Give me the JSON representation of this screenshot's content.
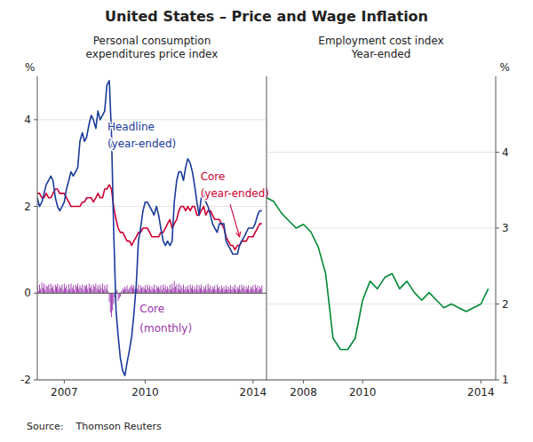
{
  "title": "United States – Price and Wage Inflation",
  "source": "Source:    Thomson Reuters",
  "chart_data": [
    {
      "type": "combo",
      "title": "Personal consumption\nexpenditures price index",
      "ylabel": "%",
      "xlim": [
        2006.0,
        2014.5
      ],
      "ylim": [
        -2.0,
        5.0
      ],
      "xticks": [
        2007,
        2010,
        2014
      ],
      "yticks": [
        -2,
        0,
        2,
        4
      ],
      "grid": true,
      "series": [
        {
          "type": "bar",
          "color": "#9933AA",
          "x": [
            2006.0,
            2006.04,
            2006.08,
            2006.12,
            2006.17,
            2006.21,
            2006.25,
            2006.29,
            2006.33,
            2006.37,
            2006.42,
            2006.46,
            2006.5,
            2006.54,
            2006.58,
            2006.62,
            2006.67,
            2006.71,
            2006.75,
            2006.79,
            2006.83,
            2006.87,
            2006.92,
            2006.96,
            2007.0,
            2007.04,
            2007.08,
            2007.12,
            2007.17,
            2007.21,
            2007.25,
            2007.29,
            2007.33,
            2007.37,
            2007.42,
            2007.46,
            2007.5,
            2007.54,
            2007.58,
            2007.62,
            2007.67,
            2007.71,
            2007.75,
            2007.79,
            2007.83,
            2007.87,
            2007.92,
            2007.96,
            2008.0,
            2008.04,
            2008.08,
            2008.12,
            2008.17,
            2008.21,
            2008.25,
            2008.29,
            2008.33,
            2008.37,
            2008.42,
            2008.46,
            2008.5,
            2008.54,
            2008.58,
            2008.62,
            2008.67,
            2008.71,
            2008.75,
            2008.79,
            2008.83,
            2008.87,
            2008.92,
            2008.96,
            2009.0,
            2009.04,
            2009.08,
            2009.12,
            2009.17,
            2009.21,
            2009.25,
            2009.29,
            2009.33,
            2009.37,
            2009.42,
            2009.46,
            2009.5,
            2009.54,
            2009.58,
            2009.62,
            2009.67,
            2009.71,
            2009.75,
            2009.79,
            2009.83,
            2009.87,
            2009.92,
            2009.96,
            2010.0,
            2010.04,
            2010.08,
            2010.12,
            2010.17,
            2010.21,
            2010.25,
            2010.29,
            2010.33,
            2010.37,
            2010.42,
            2010.46,
            2010.5,
            2010.54,
            2010.58,
            2010.62,
            2010.67,
            2010.71,
            2010.75,
            2010.79,
            2010.83,
            2010.87,
            2010.92,
            2010.96,
            2011.0,
            2011.04,
            2011.08,
            2011.12,
            2011.17,
            2011.21,
            2011.25,
            2011.29,
            2011.33,
            2011.37,
            2011.42,
            2011.46,
            2011.5,
            2011.54,
            2011.58,
            2011.62,
            2011.67,
            2011.71,
            2011.75,
            2011.79,
            2011.83,
            2011.87,
            2011.92,
            2011.96,
            2012.0,
            2012.04,
            2012.08,
            2012.12,
            2012.17,
            2012.21,
            2012.25,
            2012.29,
            2012.33,
            2012.37,
            2012.42,
            2012.46,
            2012.5,
            2012.54,
            2012.58,
            2012.62,
            2012.67,
            2012.71,
            2012.75,
            2012.79,
            2012.83,
            2012.87,
            2012.92,
            2012.96,
            2013.0,
            2013.04,
            2013.08,
            2013.12,
            2013.17,
            2013.21,
            2013.25,
            2013.29,
            2013.33,
            2013.37,
            2013.42,
            2013.46,
            2013.5,
            2013.54,
            2013.58,
            2013.62,
            2013.67,
            2013.71,
            2013.75,
            2013.79,
            2013.83,
            2013.87,
            2013.92,
            2013.96,
            2014.0,
            2014.04,
            2014.08,
            2014.12,
            2014.17,
            2014.21,
            2014.25,
            2014.29,
            2014.33
          ],
          "values": [
            0.18,
            0.05,
            0.2,
            0.1,
            0.25,
            0.12,
            0.22,
            0.08,
            0.18,
            0.15,
            0.2,
            0.1,
            0.22,
            0.12,
            0.18,
            0.08,
            0.2,
            0.15,
            0.22,
            0.1,
            0.18,
            0.12,
            0.2,
            0.08,
            0.22,
            0.12,
            0.18,
            0.08,
            0.2,
            0.1,
            0.22,
            0.12,
            0.18,
            0.08,
            0.2,
            0.15,
            0.22,
            0.1,
            0.18,
            0.12,
            0.2,
            0.08,
            0.18,
            0.15,
            0.2,
            0.1,
            0.22,
            0.12,
            0.18,
            0.08,
            0.2,
            0.15,
            0.22,
            0.1,
            0.18,
            0.08,
            0.2,
            0.12,
            0.22,
            0.08,
            0.18,
            0.1,
            0.2,
            0.05,
            -0.2,
            -0.45,
            -0.55,
            -0.4,
            -0.25,
            -0.1,
            0.05,
            0.08,
            -0.18,
            -0.12,
            -0.08,
            0.05,
            0.12,
            0.08,
            0.15,
            0.1,
            0.18,
            0.08,
            0.12,
            0.15,
            0.2,
            0.12,
            0.18,
            0.08,
            0.15,
            0.1,
            0.2,
            0.08,
            0.18,
            0.12,
            0.15,
            0.1,
            0.18,
            0.08,
            0.2,
            0.12,
            0.18,
            0.08,
            0.15,
            0.1,
            0.2,
            0.08,
            0.18,
            0.12,
            0.15,
            0.1,
            0.18,
            0.08,
            0.2,
            0.12,
            0.18,
            0.08,
            0.15,
            0.1,
            0.2,
            0.08,
            0.22,
            0.12,
            0.28,
            0.15,
            0.2,
            0.1,
            0.22,
            0.08,
            0.18,
            0.12,
            0.2,
            0.08,
            0.15,
            0.1,
            0.18,
            0.08,
            0.2,
            0.12,
            0.18,
            0.08,
            0.15,
            0.1,
            0.2,
            0.08,
            0.18,
            0.12,
            0.2,
            0.08,
            0.15,
            0.1,
            0.18,
            0.08,
            0.22,
            0.12,
            0.18,
            0.08,
            0.15,
            0.1,
            0.18,
            0.08,
            0.2,
            0.12,
            0.15,
            0.08,
            0.18,
            0.1,
            0.15,
            0.08,
            0.18,
            0.08,
            0.15,
            0.1,
            0.18,
            0.08,
            0.15,
            0.1,
            0.2,
            0.08,
            0.15,
            0.1,
            0.18,
            0.08,
            0.2,
            0.12,
            0.18,
            0.08,
            0.15,
            0.1,
            0.18,
            0.08,
            0.15,
            0.1,
            0.18,
            0.08,
            0.2,
            0.12,
            0.18,
            0.08,
            0.15,
            0.1,
            0.18
          ]
        },
        {
          "type": "line",
          "color": "#1A3A9A",
          "x": [
            2006.0,
            2006.08,
            2006.17,
            2006.25,
            2006.33,
            2006.42,
            2006.5,
            2006.58,
            2006.67,
            2006.75,
            2006.83,
            2006.92,
            2007.0,
            2007.08,
            2007.17,
            2007.25,
            2007.33,
            2007.42,
            2007.5,
            2007.58,
            2007.67,
            2007.75,
            2007.83,
            2007.92,
            2008.0,
            2008.08,
            2008.17,
            2008.25,
            2008.33,
            2008.42,
            2008.5,
            2008.58,
            2008.67,
            2008.75,
            2008.83,
            2008.92,
            2009.0,
            2009.08,
            2009.17,
            2009.25,
            2009.33,
            2009.42,
            2009.5,
            2009.58,
            2009.67,
            2009.75,
            2009.83,
            2009.92,
            2010.0,
            2010.08,
            2010.17,
            2010.25,
            2010.33,
            2010.42,
            2010.5,
            2010.58,
            2010.67,
            2010.75,
            2010.83,
            2010.92,
            2011.0,
            2011.08,
            2011.17,
            2011.25,
            2011.33,
            2011.42,
            2011.5,
            2011.58,
            2011.67,
            2011.75,
            2011.83,
            2011.92,
            2012.0,
            2012.08,
            2012.17,
            2012.25,
            2012.33,
            2012.42,
            2012.5,
            2012.58,
            2012.67,
            2012.75,
            2012.83,
            2012.92,
            2013.0,
            2013.08,
            2013.17,
            2013.25,
            2013.33,
            2013.42,
            2013.5,
            2013.58,
            2013.67,
            2013.75,
            2013.83,
            2013.92,
            2014.0,
            2014.08,
            2014.17,
            2014.25,
            2014.33
          ],
          "values": [
            2.2,
            2.0,
            2.1,
            2.3,
            2.5,
            2.6,
            2.7,
            2.6,
            2.2,
            2.0,
            1.9,
            2.0,
            2.1,
            2.4,
            2.6,
            2.8,
            2.7,
            2.8,
            2.9,
            3.5,
            3.7,
            3.5,
            3.6,
            3.9,
            4.1,
            4.0,
            3.8,
            4.2,
            4.0,
            4.1,
            4.2,
            4.8,
            4.9,
            3.7,
            1.5,
            -0.4,
            -1.0,
            -1.5,
            -1.8,
            -1.9,
            -1.6,
            -1.3,
            -1.0,
            -0.5,
            0.2,
            1.2,
            1.5,
            1.9,
            2.1,
            2.1,
            2.0,
            1.9,
            1.8,
            2.0,
            1.8,
            1.5,
            1.2,
            1.1,
            1.2,
            1.1,
            1.2,
            2.1,
            2.6,
            2.8,
            2.8,
            2.6,
            2.9,
            3.1,
            3.0,
            2.8,
            2.5,
            2.1,
            1.8,
            2.2,
            2.3,
            2.1,
            2.0,
            1.8,
            1.6,
            1.5,
            1.4,
            1.6,
            1.6,
            1.6,
            1.2,
            1.1,
            1.0,
            0.9,
            0.9,
            0.9,
            1.1,
            1.2,
            1.3,
            1.4,
            1.5,
            1.5,
            1.5,
            1.6,
            1.8,
            1.9,
            1.9
          ]
        },
        {
          "type": "line",
          "color": "#CC0033",
          "x": [
            2006.0,
            2006.08,
            2006.17,
            2006.25,
            2006.33,
            2006.42,
            2006.5,
            2006.58,
            2006.67,
            2006.75,
            2006.83,
            2006.92,
            2007.0,
            2007.08,
            2007.17,
            2007.25,
            2007.33,
            2007.42,
            2007.5,
            2007.58,
            2007.67,
            2007.75,
            2007.83,
            2007.92,
            2008.0,
            2008.08,
            2008.17,
            2008.25,
            2008.33,
            2008.42,
            2008.5,
            2008.58,
            2008.67,
            2008.75,
            2008.83,
            2008.92,
            2009.0,
            2009.08,
            2009.17,
            2009.25,
            2009.33,
            2009.42,
            2009.5,
            2009.58,
            2009.67,
            2009.75,
            2009.83,
            2009.92,
            2010.0,
            2010.08,
            2010.17,
            2010.25,
            2010.33,
            2010.42,
            2010.5,
            2010.58,
            2010.67,
            2010.75,
            2010.83,
            2010.92,
            2011.0,
            2011.08,
            2011.17,
            2011.25,
            2011.33,
            2011.42,
            2011.5,
            2011.58,
            2011.67,
            2011.75,
            2011.83,
            2011.92,
            2012.0,
            2012.08,
            2012.17,
            2012.25,
            2012.33,
            2012.42,
            2012.5,
            2012.58,
            2012.67,
            2012.75,
            2012.83,
            2012.92,
            2013.0,
            2013.08,
            2013.17,
            2013.25,
            2013.33,
            2013.42,
            2013.5,
            2013.58,
            2013.67,
            2013.75,
            2013.83,
            2013.92,
            2014.0,
            2014.08,
            2014.17,
            2014.25,
            2014.33
          ],
          "values": [
            2.3,
            2.3,
            2.2,
            2.2,
            2.3,
            2.2,
            2.2,
            2.3,
            2.4,
            2.4,
            2.3,
            2.3,
            2.3,
            2.2,
            2.1,
            2.0,
            2.0,
            2.0,
            2.0,
            2.0,
            2.1,
            2.1,
            2.2,
            2.2,
            2.2,
            2.1,
            2.2,
            2.3,
            2.2,
            2.2,
            2.4,
            2.4,
            2.5,
            2.4,
            2.0,
            1.7,
            1.5,
            1.4,
            1.4,
            1.3,
            1.2,
            1.2,
            1.1,
            1.2,
            1.3,
            1.4,
            1.4,
            1.5,
            1.5,
            1.5,
            1.4,
            1.3,
            1.3,
            1.3,
            1.3,
            1.4,
            1.4,
            1.5,
            1.6,
            1.7,
            1.5,
            1.6,
            1.7,
            1.9,
            2.0,
            2.0,
            1.9,
            2.0,
            1.9,
            2.0,
            2.0,
            1.8,
            1.8,
            1.9,
            2.0,
            1.8,
            1.9,
            1.9,
            1.8,
            1.7,
            1.7,
            1.7,
            1.6,
            1.5,
            1.3,
            1.2,
            1.1,
            1.1,
            1.0,
            1.1,
            1.1,
            1.2,
            1.2,
            1.2,
            1.3,
            1.3,
            1.3,
            1.4,
            1.5,
            1.6,
            1.6
          ]
        }
      ],
      "annotations": [
        {
          "text": "Headline",
          "x": 2008.6,
          "y": 3.7,
          "color": "#1A3A9A"
        },
        {
          "text": "(year-ended)",
          "x": 2008.6,
          "y": 3.3,
          "color": "#1A3A9A"
        },
        {
          "text": "Core",
          "x": 2012.05,
          "y": 2.55,
          "color": "#CC0033"
        },
        {
          "text": "(year-ended)",
          "x": 2012.05,
          "y": 2.15,
          "color": "#CC0033",
          "arrow_from": [
            2013.15,
            2.05
          ],
          "arrow_to": [
            2013.5,
            1.3
          ]
        },
        {
          "text": "Core",
          "x": 2009.8,
          "y": -0.5,
          "color": "#9933AA"
        },
        {
          "text": "(monthly)",
          "x": 2009.8,
          "y": -0.95,
          "color": "#9933AA"
        }
      ]
    },
    {
      "type": "line",
      "title": "Employment cost index\nYear-ended",
      "ylabel": "%",
      "xlim": [
        2006.75,
        2014.5
      ],
      "ylim": [
        1.0,
        5.0
      ],
      "xticks": [
        2008,
        2010,
        2014
      ],
      "yticks": [
        1,
        2,
        3,
        4
      ],
      "grid": true,
      "series": [
        {
          "type": "line",
          "color": "#008833",
          "x": [
            2006.75,
            2007.0,
            2007.25,
            2007.5,
            2007.75,
            2008.0,
            2008.25,
            2008.5,
            2008.75,
            2009.0,
            2009.25,
            2009.5,
            2009.75,
            2010.0,
            2010.25,
            2010.5,
            2010.75,
            2011.0,
            2011.25,
            2011.5,
            2011.75,
            2012.0,
            2012.25,
            2012.5,
            2012.75,
            2013.0,
            2013.25,
            2013.5,
            2013.75,
            2014.0,
            2014.25
          ],
          "values": [
            3.4,
            3.35,
            3.2,
            3.1,
            3.0,
            3.05,
            2.95,
            2.75,
            2.4,
            1.55,
            1.4,
            1.4,
            1.55,
            2.05,
            2.3,
            2.2,
            2.35,
            2.4,
            2.2,
            2.3,
            2.15,
            2.05,
            2.15,
            2.05,
            1.95,
            2.0,
            1.95,
            1.9,
            1.95,
            2.0,
            2.2
          ]
        }
      ]
    }
  ]
}
